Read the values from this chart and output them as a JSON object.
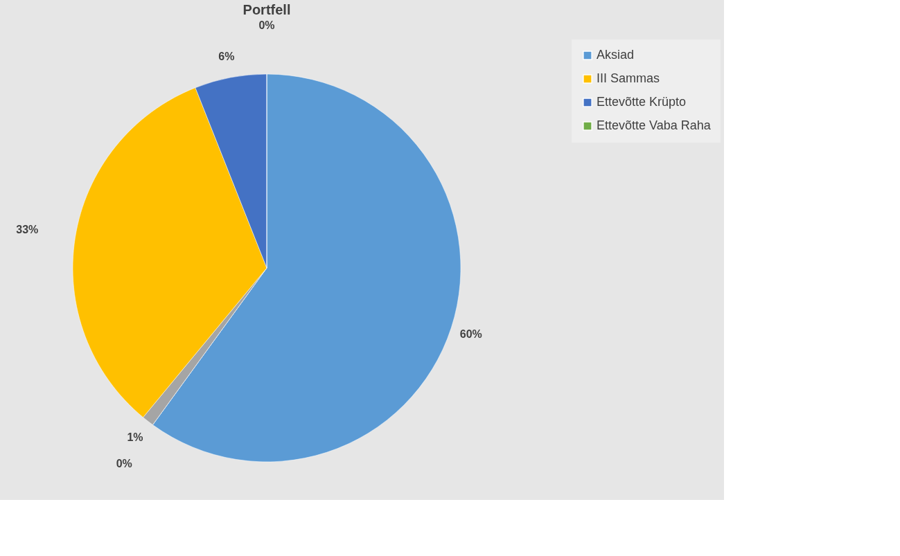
{
  "chart_data": {
    "type": "pie",
    "title": "Portfell",
    "categories": [
      "Aksiad",
      null,
      null,
      "III Sammas",
      "Ettevõtte Krüpto",
      "Ettevõtte Vaba Raha"
    ],
    "values": [
      60,
      0,
      1,
      33,
      6,
      0
    ],
    "colors": [
      "#5b9bd5",
      "#ed7d31",
      "#a5a5a5",
      "#ffc000",
      "#4472c4",
      "#70ad47"
    ],
    "value_labels": [
      "60%",
      "0%",
      "1%",
      "33%",
      "6%",
      "0%"
    ],
    "legend": "right"
  }
}
